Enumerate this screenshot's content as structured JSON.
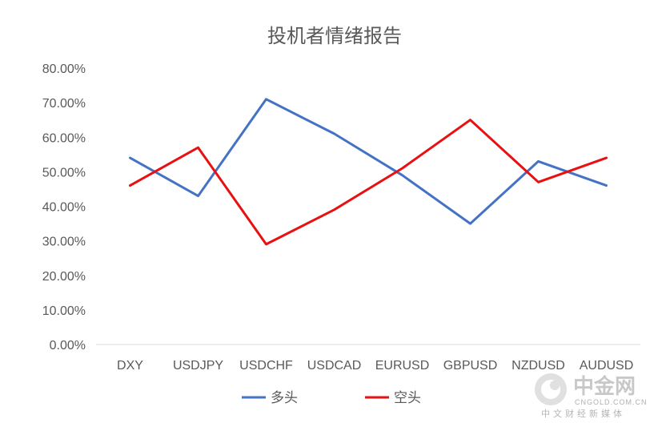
{
  "chart_data": {
    "type": "line",
    "title": "投机者情绪报告",
    "categories": [
      "DXY",
      "USDJPY",
      "USDCHF",
      "USDCAD",
      "EURUSD",
      "GBPUSD",
      "NZDUSD",
      "AUDUSD"
    ],
    "ylim": [
      0,
      0.8
    ],
    "yticks": [
      0,
      0.1,
      0.2,
      0.3,
      0.4,
      0.5,
      0.6,
      0.7,
      0.8
    ],
    "ytick_labels": [
      "0.00%",
      "10.00%",
      "20.00%",
      "30.00%",
      "40.00%",
      "50.00%",
      "60.00%",
      "70.00%",
      "80.00%"
    ],
    "grid": false,
    "legend": "bottom",
    "series": [
      {
        "name": "多头",
        "color": "#4472C4",
        "values": [
          0.54,
          0.43,
          0.71,
          0.61,
          0.49,
          0.35,
          0.53,
          0.46
        ]
      },
      {
        "name": "空头",
        "color": "#E81010",
        "values": [
          0.46,
          0.57,
          0.29,
          0.39,
          0.51,
          0.65,
          0.47,
          0.54
        ]
      }
    ]
  },
  "watermark": {
    "brand": "中金网",
    "domain": "CNGOLD.COM.CN",
    "slogan": "中文财经新媒体"
  }
}
